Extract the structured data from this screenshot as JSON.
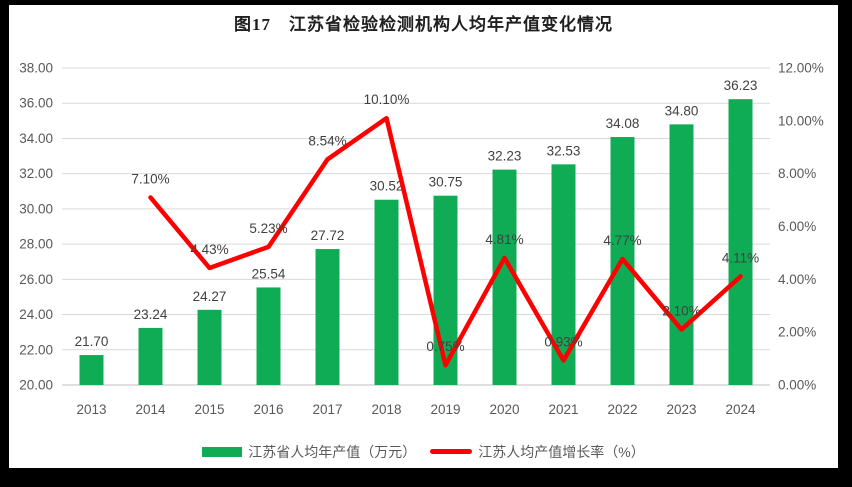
{
  "frame": {
    "background": "#000000"
  },
  "panel": {
    "background": "#ffffff"
  },
  "title": "图17　江苏省检验检测机构人均年产值变化情况",
  "legend": {
    "bar_label": "江苏省人均年产值（万元）",
    "line_label": "江苏人均产值增长率（%）"
  },
  "colors": {
    "bar": "#10ac55",
    "line": "#fe0000",
    "grid": "#d9d9d9",
    "axis_line": "#bfbfbf",
    "tick_text": "#595959",
    "data_label": "#404040"
  },
  "chart_data": {
    "type": "bar",
    "subtype": "bar-line-combo",
    "title": "图17　江苏省检验检测机构人均年产值变化情况",
    "categories": [
      "2013",
      "2014",
      "2015",
      "2016",
      "2017",
      "2018",
      "2019",
      "2020",
      "2021",
      "2022",
      "2023",
      "2024"
    ],
    "series": [
      {
        "name": "江苏省人均年产值（万元）",
        "type": "bar",
        "axis": "left",
        "color": "#10ac55",
        "values": [
          21.7,
          23.24,
          24.27,
          25.54,
          27.72,
          30.52,
          30.75,
          32.23,
          32.53,
          34.08,
          34.8,
          36.23
        ],
        "data_labels": [
          "21.70",
          "23.24",
          "24.27",
          "25.54",
          "27.72",
          "30.52",
          "30.75",
          "32.23",
          "32.53",
          "34.08",
          "34.80",
          "36.23"
        ]
      },
      {
        "name": "江苏人均产值增长率（%）",
        "type": "line",
        "axis": "right",
        "color": "#fe0000",
        "values": [
          null,
          7.1,
          4.43,
          5.23,
          8.54,
          10.1,
          0.75,
          4.81,
          0.93,
          4.77,
          2.1,
          4.11
        ],
        "data_labels": [
          null,
          "7.10%",
          "4.43%",
          "5.23%",
          "8.54%",
          "10.10%",
          "0.75%",
          "4.81%",
          "0.93%",
          "4.77%",
          "2.10%",
          "4.11%"
        ]
      }
    ],
    "left_axis": {
      "min": 20,
      "max": 38,
      "step": 2,
      "tick_labels": [
        "20.00",
        "22.00",
        "24.00",
        "26.00",
        "28.00",
        "30.00",
        "32.00",
        "34.00",
        "36.00",
        "38.00"
      ]
    },
    "right_axis": {
      "min": 0,
      "max": 12,
      "step": 2,
      "tick_labels": [
        "0.00%",
        "2.00%",
        "4.00%",
        "6.00%",
        "8.00%",
        "10.00%",
        "12.00%"
      ]
    },
    "grid": true,
    "legend_position": "bottom"
  }
}
